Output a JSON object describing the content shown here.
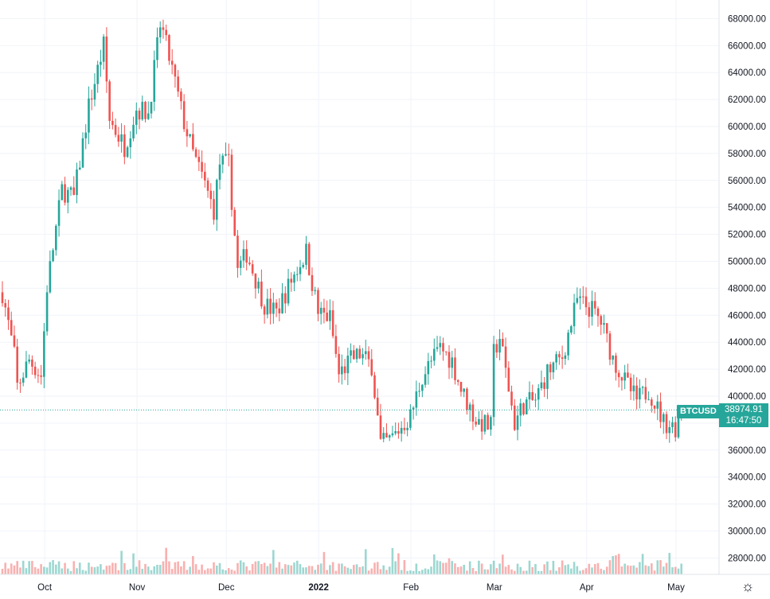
{
  "symbol": "BTCUSD",
  "last_price": "38974.91",
  "countdown": "16:47:50",
  "colors": {
    "up": "#26a69a",
    "down": "#ef5350",
    "grid": "#f0f3fa"
  },
  "icons": {
    "settings": "gear-icon"
  },
  "chart_data": {
    "type": "candlestick",
    "price_axis": {
      "ticks": [
        28000,
        30000,
        32000,
        34000,
        36000,
        38000,
        40000,
        42000,
        44000,
        46000,
        48000,
        50000,
        52000,
        54000,
        56000,
        58000,
        60000,
        62000,
        64000,
        66000,
        68000
      ],
      "format_decimals": 2
    },
    "time_axis": {
      "labels": [
        "Oct",
        "Nov",
        "Dec",
        "2022",
        "Feb",
        "Mar",
        "Apr",
        "May"
      ]
    },
    "grid": true,
    "last_price_value": 38974.91,
    "ohlc_close_path": [
      [
        "2021-09-16",
        47700
      ],
      [
        "2021-09-20",
        43000
      ],
      [
        "2021-09-21",
        40700
      ],
      [
        "2021-09-25",
        42700
      ],
      [
        "2021-09-29",
        41500
      ],
      [
        "2021-10-01",
        48100
      ],
      [
        "2021-10-06",
        55300
      ],
      [
        "2021-10-10",
        54700
      ],
      [
        "2021-10-15",
        61500
      ],
      [
        "2021-10-20",
        66000
      ],
      [
        "2021-10-22",
        60500
      ],
      [
        "2021-10-27",
        58500
      ],
      [
        "2021-10-31",
        61300
      ],
      [
        "2021-11-04",
        61000
      ],
      [
        "2021-11-08",
        67500
      ],
      [
        "2021-11-09",
        66900
      ],
      [
        "2021-11-12",
        64200
      ],
      [
        "2021-11-16",
        60300
      ],
      [
        "2021-11-19",
        58000
      ],
      [
        "2021-11-22",
        56300
      ],
      [
        "2021-11-26",
        53800
      ],
      [
        "2021-11-28",
        57300
      ],
      [
        "2021-12-01",
        57200
      ],
      [
        "2021-12-04",
        49300
      ],
      [
        "2021-12-07",
        50600
      ],
      [
        "2021-12-13",
        46800
      ],
      [
        "2021-12-17",
        46200
      ],
      [
        "2021-12-22",
        48600
      ],
      [
        "2021-12-27",
        50700
      ],
      [
        "2021-12-31",
        46200
      ],
      [
        "2022-01-04",
        45800
      ],
      [
        "2022-01-07",
        41600
      ],
      [
        "2022-01-11",
        42700
      ],
      [
        "2022-01-14",
        43100
      ],
      [
        "2022-01-18",
        42300
      ],
      [
        "2022-01-21",
        36400
      ],
      [
        "2022-01-24",
        36700
      ],
      [
        "2022-01-31",
        38500
      ],
      [
        "2022-02-04",
        41500
      ],
      [
        "2022-02-10",
        43600
      ],
      [
        "2022-02-14",
        42600
      ],
      [
        "2022-02-17",
        40500
      ],
      [
        "2022-02-22",
        38200
      ],
      [
        "2022-02-27",
        37700
      ],
      [
        "2022-02-28",
        43200
      ],
      [
        "2022-03-02",
        44400
      ],
      [
        "2022-03-07",
        38000
      ],
      [
        "2022-03-10",
        39400
      ],
      [
        "2022-03-14",
        39700
      ],
      [
        "2022-03-18",
        41800
      ],
      [
        "2022-03-23",
        42900
      ],
      [
        "2022-03-28",
        47100
      ],
      [
        "2022-04-02",
        46400
      ],
      [
        "2022-04-05",
        45500
      ],
      [
        "2022-04-09",
        42800
      ],
      [
        "2022-04-13",
        41100
      ],
      [
        "2022-04-17",
        39700
      ],
      [
        "2022-04-21",
        40500
      ],
      [
        "2022-04-26",
        38100
      ],
      [
        "2022-04-30",
        37700
      ],
      [
        "2022-05-01",
        38500
      ],
      [
        "2022-05-02",
        38975
      ]
    ],
    "x_range": [
      "2021-09-16",
      "2022-05-02"
    ],
    "y_range": [
      27000,
      69000
    ],
    "volume_pane": true
  }
}
